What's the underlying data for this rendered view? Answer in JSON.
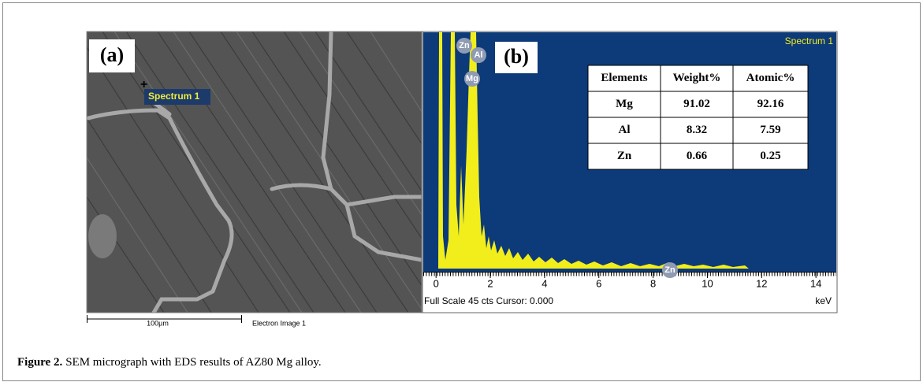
{
  "panel_a": {
    "label": "(a)",
    "marker": "Spectrum 1",
    "scale_bar": "100µm",
    "image_name": "Electron Image 1"
  },
  "panel_b": {
    "label": "(b)",
    "spectrum_name": "Spectrum 1",
    "peaks": [
      "Zn",
      "Al",
      "Mg",
      "Zn"
    ],
    "xlim": [
      -0.47,
      14.75
    ],
    "xticks": [
      0,
      2,
      4,
      6,
      8,
      10,
      12,
      14
    ],
    "x_unit": "keV",
    "status": "Full Scale 45 cts Cursor: 0.000",
    "table": {
      "header": [
        "Elements",
        "Weight%",
        "Atomic%"
      ],
      "rows": [
        [
          "Mg",
          "91.02",
          "92.16"
        ],
        [
          "Al",
          "8.32",
          "7.59"
        ],
        [
          "Zn",
          "0.66",
          "0.25"
        ]
      ]
    }
  },
  "caption": {
    "label": "Figure 2.",
    "text": "SEM micrograph with EDS results of AZ80 Mg alloy."
  }
}
